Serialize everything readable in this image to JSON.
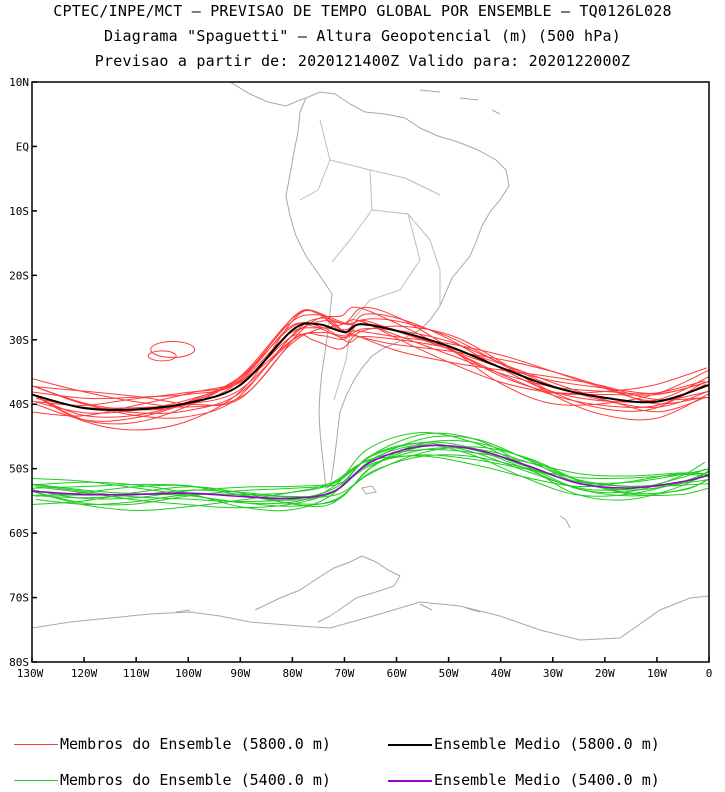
{
  "titles": {
    "line1": "CPTEC/INPE/MCT – PREVISAO DE TEMPO GLOBAL POR ENSEMBLE – TQ0126L028",
    "line2": "Diagrama \"Spaguetti\" – Altura Geopotencial (m) (500 hPa)",
    "line3": "Previsao a partir de: 2020121400Z  Valido para: 2020122000Z"
  },
  "axes": {
    "lat_labels": [
      "10N",
      "EQ",
      "10S",
      "20S",
      "30S",
      "40S",
      "50S",
      "60S",
      "70S",
      "80S"
    ],
    "lon_labels": [
      "130W",
      "120W",
      "110W",
      "100W",
      "90W",
      "80W",
      "70W",
      "60W",
      "50W",
      "40W",
      "30W",
      "20W",
      "10W",
      "0"
    ]
  },
  "legend": {
    "members_5800": "Membros do Ensemble (5800.0 m)",
    "mean_5800": "Ensemble Medio (5800.0 m)",
    "members_5400": "Membros do Ensemble (5400.0 m)",
    "mean_5400": "Ensemble Medio (5400.0 m)"
  },
  "colors": {
    "members_5800": "#ff3b3b",
    "mean_5800": "#000000",
    "members_5400": "#22cc22",
    "mean_5400": "#9900cc",
    "coastline": "#a8a8a8"
  },
  "chart_data": {
    "type": "line",
    "x_range": [
      -130,
      0
    ],
    "y_range": [
      -80,
      10
    ],
    "mean_5800": {
      "lon": [
        -130,
        -120,
        -110,
        -100,
        -90,
        -80,
        -75,
        -70,
        -67,
        -60,
        -50,
        -40,
        -30,
        -20,
        -10,
        0
      ],
      "lat": [
        -38.5,
        -40.6,
        -40.8,
        -39.8,
        -37.0,
        -28.5,
        -27.6,
        -28.8,
        -27.6,
        -28.6,
        -31.0,
        -34.3,
        -37.3,
        -39.0,
        -39.6,
        -37.0
      ]
    },
    "mean_5400": {
      "lon": [
        -130,
        -120,
        -110,
        -100,
        -90,
        -80,
        -72,
        -65,
        -55,
        -45,
        -35,
        -25,
        -15,
        -5,
        0
      ],
      "lat": [
        -53.5,
        -54.0,
        -54.0,
        -53.8,
        -54.3,
        -54.6,
        -53.5,
        -49.0,
        -46.5,
        -47.0,
        -49.5,
        -52.3,
        -53.0,
        -52.0,
        -51.0
      ]
    }
  }
}
